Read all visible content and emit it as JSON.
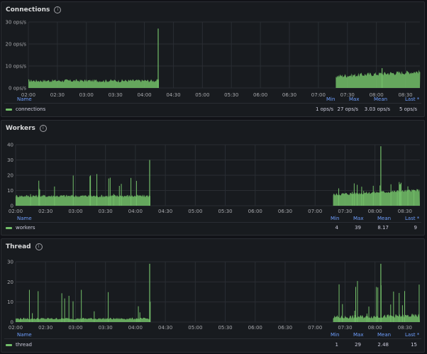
{
  "colors": {
    "series": "#73bf69",
    "grid": "#2a2d33",
    "legend_header": "#6e9fff"
  },
  "x_ticks": [
    "02:00",
    "02:30",
    "03:00",
    "03:30",
    "04:00",
    "04:30",
    "05:00",
    "05:30",
    "06:00",
    "06:30",
    "07:00",
    "07:30",
    "08:00",
    "08:30"
  ],
  "legend_headers": {
    "name": "Name",
    "min": "Min",
    "max": "Max",
    "mean": "Mean",
    "last": "Last *"
  },
  "panels": [
    {
      "title": "Connections",
      "y_ticks": [
        "0 ops/s",
        "10 ops/s",
        "20 ops/s",
        "30 ops/s"
      ],
      "series": {
        "name": "connections",
        "min": "1 ops/s",
        "max": "27 ops/s",
        "mean": "3.03 ops/s",
        "last": "5 ops/s"
      },
      "chart_data": {
        "type": "area",
        "ylim": [
          0,
          30
        ],
        "segments": [
          [
            0,
            4.5,
            3,
            1.5,
            0,
            27
          ],
          [
            10.6,
            14,
            5,
            2,
            0,
            9
          ]
        ]
      }
    },
    {
      "title": "Workers",
      "y_ticks": [
        "0",
        "10",
        "20",
        "30",
        "40"
      ],
      "series": {
        "name": "workers",
        "min": "4",
        "max": "39",
        "mean": "8.17",
        "last": "9"
      },
      "chart_data": {
        "type": "area",
        "ylim": [
          0,
          40
        ],
        "segments": [
          [
            0,
            4.5,
            6,
            2,
            22,
            30
          ],
          [
            10.6,
            14,
            7,
            2,
            18,
            39
          ]
        ]
      }
    },
    {
      "title": "Thread",
      "y_ticks": [
        "0",
        "10",
        "20",
        "30"
      ],
      "series": {
        "name": "thread",
        "min": "1",
        "max": "29",
        "mean": "2.48",
        "last": "15"
      },
      "chart_data": {
        "type": "area",
        "ylim": [
          0,
          30
        ],
        "segments": [
          [
            0,
            4.5,
            1.5,
            1,
            18,
            29
          ],
          [
            10.6,
            14,
            2,
            2,
            22,
            29
          ]
        ]
      }
    }
  ]
}
